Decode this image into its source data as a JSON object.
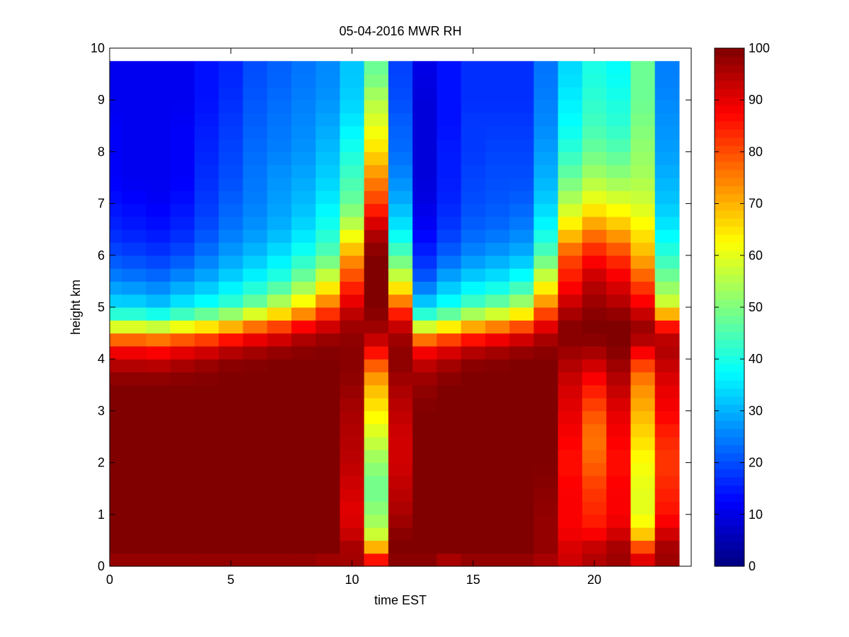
{
  "chart_data": {
    "type": "heatmap",
    "title": "05-04-2016 MWR RH",
    "xlabel": "time EST",
    "ylabel": "height km",
    "xlim": [
      0,
      24
    ],
    "ylim": [
      0,
      10
    ],
    "xticks": [
      0,
      5,
      10,
      15,
      20
    ],
    "yticks": [
      0,
      1,
      2,
      3,
      4,
      5,
      6,
      7,
      8,
      9,
      10
    ],
    "colorbar": {
      "colormap": "jet",
      "range": [
        0,
        100
      ],
      "ticks": [
        0,
        10,
        20,
        30,
        40,
        50,
        60,
        70,
        80,
        90,
        100
      ]
    },
    "x": [
      0,
      1,
      2,
      3,
      4,
      5,
      6,
      7,
      8,
      9,
      10,
      11,
      12,
      13,
      14,
      15,
      16,
      17,
      18,
      19,
      20,
      21,
      22,
      23
    ],
    "data_extent": {
      "x_max": 23.5,
      "y_max": 9.75
    },
    "heights": [
      0,
      0.25,
      0.5,
      0.75,
      1,
      1.5,
      2,
      2.5,
      3,
      3.5,
      3.75,
      4,
      4.25,
      4.5,
      4.75,
      5,
      5.5,
      6,
      6.5,
      7,
      7.5,
      8,
      8.5,
      9,
      9.5
    ],
    "rh_by_hour": [
      [
        96,
        100,
        100,
        100,
        100,
        100,
        100,
        100,
        100,
        100,
        97,
        93,
        85,
        70,
        48,
        35,
        26,
        20,
        16,
        14,
        12,
        12,
        12,
        11,
        11
      ],
      [
        96,
        100,
        100,
        100,
        100,
        100,
        100,
        100,
        100,
        100,
        97,
        93,
        85,
        70,
        48,
        35,
        25,
        19,
        15,
        13,
        11,
        11,
        11,
        11,
        11
      ],
      [
        96,
        100,
        100,
        100,
        100,
        100,
        100,
        100,
        100,
        100,
        97,
        92,
        84,
        68,
        46,
        33,
        24,
        18,
        14,
        12,
        11,
        11,
        11,
        11,
        11
      ],
      [
        96,
        100,
        100,
        100,
        100,
        100,
        100,
        100,
        100,
        100,
        98,
        94,
        86,
        72,
        50,
        37,
        27,
        20,
        16,
        14,
        12,
        12,
        12,
        11,
        11
      ],
      [
        96,
        100,
        100,
        100,
        100,
        100,
        100,
        100,
        100,
        100,
        99,
        96,
        88,
        75,
        55,
        40,
        30,
        24,
        20,
        18,
        17,
        16,
        15,
        14,
        14
      ],
      [
        96,
        100,
        100,
        100,
        100,
        100,
        100,
        100,
        100,
        100,
        100,
        98,
        92,
        80,
        60,
        44,
        34,
        28,
        24,
        22,
        20,
        19,
        18,
        17,
        16
      ],
      [
        96,
        100,
        100,
        100,
        100,
        100,
        100,
        100,
        100,
        100,
        100,
        99,
        94,
        85,
        68,
        50,
        38,
        31,
        27,
        25,
        24,
        23,
        22,
        21,
        20
      ],
      [
        96,
        100,
        100,
        100,
        100,
        100,
        100,
        100,
        100,
        100,
        100,
        100,
        96,
        88,
        74,
        58,
        42,
        35,
        30,
        28,
        27,
        25,
        24,
        23,
        22
      ],
      [
        96,
        100,
        100,
        100,
        100,
        100,
        100,
        100,
        100,
        100,
        100,
        100,
        98,
        93,
        82,
        66,
        50,
        40,
        34,
        31,
        29,
        27,
        26,
        25,
        24
      ],
      [
        94,
        100,
        100,
        100,
        100,
        100,
        100,
        100,
        100,
        100,
        100,
        100,
        99,
        96,
        88,
        78,
        60,
        46,
        40,
        36,
        33,
        31,
        29,
        27,
        26
      ],
      [
        95,
        98,
        94,
        92,
        90,
        92,
        94,
        95,
        96,
        98,
        99,
        99,
        99,
        98,
        96,
        92,
        82,
        72,
        58,
        48,
        44,
        40,
        36,
        33,
        32
      ],
      [
        92,
        80,
        60,
        55,
        52,
        48,
        52,
        58,
        64,
        70,
        75,
        82,
        90,
        96,
        98,
        100,
        100,
        100,
        94,
        82,
        74,
        66,
        60,
        55,
        48
      ],
      [
        98,
        100,
        100,
        98,
        96,
        94,
        92,
        92,
        94,
        96,
        98,
        99,
        98,
        96,
        90,
        80,
        60,
        46,
        36,
        30,
        26,
        23,
        22,
        20,
        19
      ],
      [
        98,
        100,
        100,
        100,
        100,
        100,
        100,
        100,
        100,
        98,
        96,
        92,
        85,
        68,
        48,
        35,
        22,
        16,
        12,
        10,
        9,
        9,
        9,
        9,
        10
      ],
      [
        92,
        100,
        100,
        100,
        100,
        100,
        100,
        100,
        100,
        100,
        98,
        95,
        88,
        74,
        54,
        40,
        30,
        22,
        18,
        16,
        15,
        15,
        14,
        14,
        14
      ],
      [
        96,
        100,
        100,
        100,
        100,
        100,
        100,
        100,
        100,
        100,
        100,
        98,
        92,
        80,
        62,
        46,
        34,
        26,
        22,
        20,
        19,
        18,
        18,
        17,
        17
      ],
      [
        96,
        100,
        100,
        100,
        100,
        100,
        100,
        100,
        100,
        100,
        100,
        99,
        94,
        84,
        66,
        50,
        36,
        28,
        23,
        21,
        20,
        19,
        18,
        17,
        17
      ],
      [
        96,
        100,
        100,
        100,
        100,
        100,
        100,
        100,
        100,
        100,
        100,
        100,
        96,
        88,
        72,
        56,
        40,
        30,
        25,
        22,
        20,
        19,
        18,
        17,
        17
      ],
      [
        94,
        98,
        98,
        98,
        98,
        99,
        100,
        100,
        100,
        100,
        100,
        100,
        98,
        94,
        86,
        76,
        60,
        46,
        38,
        33,
        30,
        28,
        26,
        25,
        24
      ],
      [
        92,
        92,
        90,
        88,
        88,
        88,
        86,
        88,
        90,
        92,
        94,
        96,
        98,
        100,
        98,
        94,
        86,
        80,
        66,
        56,
        48,
        42,
        38,
        36,
        34
      ],
      [
        94,
        96,
        90,
        86,
        84,
        82,
        78,
        76,
        80,
        86,
        90,
        94,
        98,
        100,
        100,
        98,
        94,
        86,
        74,
        62,
        54,
        48,
        44,
        42,
        40
      ],
      [
        96,
        98,
        94,
        90,
        88,
        88,
        86,
        88,
        90,
        94,
        96,
        98,
        100,
        100,
        100,
        96,
        90,
        82,
        70,
        60,
        52,
        46,
        42,
        40,
        38
      ],
      [
        92,
        88,
        72,
        64,
        60,
        60,
        62,
        66,
        70,
        74,
        78,
        84,
        92,
        98,
        96,
        90,
        80,
        70,
        64,
        58,
        54,
        52,
        50,
        48,
        48
      ],
      [
        96,
        98,
        94,
        90,
        86,
        84,
        82,
        84,
        88,
        90,
        92,
        94,
        96,
        92,
        80,
        60,
        50,
        42,
        36,
        32,
        30,
        28,
        27,
        26,
        25
      ]
    ]
  }
}
